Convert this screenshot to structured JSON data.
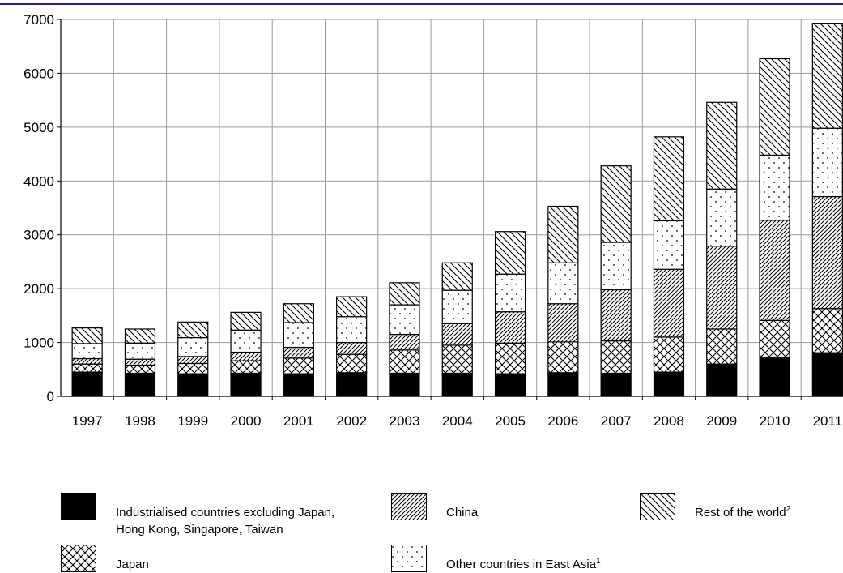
{
  "chart_data": {
    "type": "bar",
    "stacked": true,
    "title": "",
    "xlabel": "",
    "ylabel": "",
    "ylim": [
      0,
      7000
    ],
    "yticks": [
      0,
      1000,
      2000,
      3000,
      4000,
      5000,
      6000,
      7000
    ],
    "grid": true,
    "legend_position": "bottom",
    "categories": [
      "1997",
      "1998",
      "1999",
      "2000",
      "2001",
      "2002",
      "2003",
      "2004",
      "2005",
      "2006",
      "2007",
      "2008",
      "2009",
      "2010",
      "2011"
    ],
    "series": [
      {
        "name": "Industrialised countries excluding Japan, Hong Kong, Singapore, Taiwan",
        "pattern": "solid-black",
        "values": [
          450,
          430,
          420,
          430,
          420,
          440,
          430,
          430,
          420,
          440,
          430,
          450,
          600,
          730,
          810
        ]
      },
      {
        "name": "Japan",
        "pattern": "cross-hatch",
        "values": [
          150,
          150,
          190,
          230,
          290,
          340,
          430,
          520,
          570,
          570,
          600,
          650,
          650,
          680,
          820
        ]
      },
      {
        "name": "China",
        "pattern": "forward-diagonal",
        "values": [
          100,
          110,
          130,
          160,
          200,
          220,
          290,
          400,
          580,
          710,
          950,
          1260,
          1540,
          1860,
          2080
        ]
      },
      {
        "name": "Other countries in East Asia",
        "superscript": "1",
        "pattern": "dots",
        "values": [
          280,
          300,
          350,
          410,
          460,
          480,
          550,
          620,
          700,
          760,
          880,
          900,
          1060,
          1210,
          1270
        ]
      },
      {
        "name": "Rest of the world",
        "superscript": "2",
        "pattern": "backward-diagonal",
        "values": [
          290,
          260,
          290,
          330,
          350,
          370,
          410,
          510,
          790,
          1050,
          1420,
          1560,
          1610,
          1790,
          1950
        ]
      }
    ]
  },
  "legend": {
    "items": [
      {
        "line1": "Industrialised countries excluding Japan,",
        "line2": "Hong Kong, Singapore, Taiwan",
        "sup": ""
      },
      {
        "line1": "Japan",
        "line2": "",
        "sup": ""
      },
      {
        "line1": "China",
        "line2": "",
        "sup": ""
      },
      {
        "line1": "Other countries in East Asia",
        "line2": "",
        "sup": "1"
      },
      {
        "line1": "Rest of the world",
        "line2": "",
        "sup": "2"
      }
    ]
  },
  "colors": {
    "bar_fill": "#ffffff",
    "bar_stroke": "#000000",
    "grid": "#9a9a9a",
    "top_rule": "#1f1f8f"
  }
}
